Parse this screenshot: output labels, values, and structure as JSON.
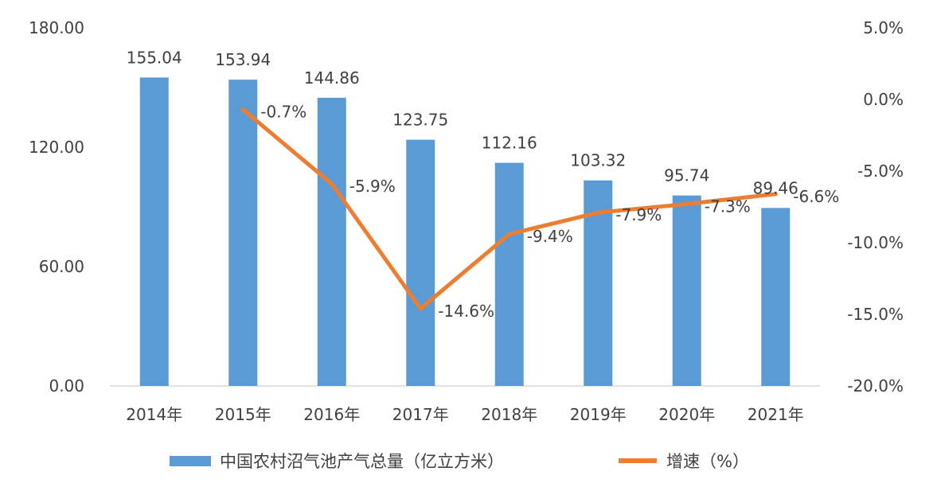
{
  "chart_data": {
    "type": "bar",
    "categories": [
      "2014年",
      "2015年",
      "2016年",
      "2017年",
      "2018年",
      "2019年",
      "2020年",
      "2021年"
    ],
    "series": [
      {
        "name": "中国农村沼气池产气总量（亿立方米）",
        "type": "bar",
        "axis": "left",
        "color": "#5B9BD5",
        "values": [
          155.04,
          153.94,
          144.86,
          123.75,
          112.16,
          103.32,
          95.74,
          89.46
        ],
        "labels": [
          "155.04",
          "153.94",
          "144.86",
          "123.75",
          "112.16",
          "103.32",
          "95.74",
          "89.46"
        ]
      },
      {
        "name": "增速（%）",
        "type": "line",
        "axis": "right",
        "color": "#ED7D31",
        "values": [
          null,
          -0.7,
          -5.9,
          -14.6,
          -9.4,
          -7.9,
          -7.3,
          -6.6
        ],
        "labels": [
          null,
          "-0.7%",
          "-5.9%",
          "-14.6%",
          "-9.4%",
          "-7.9%",
          "-7.3%",
          "-6.6%"
        ]
      }
    ],
    "y_left": {
      "ylim": [
        0,
        180
      ],
      "ticks": [
        0,
        60,
        120,
        180
      ],
      "tick_labels": [
        "0.00",
        "60.00",
        "120.00",
        "180.00"
      ]
    },
    "y_right": {
      "ylim": [
        -20,
        5
      ],
      "ticks": [
        -20,
        -15,
        -10,
        -5,
        0,
        5
      ],
      "tick_labels": [
        "-20.0%",
        "-15.0%",
        "-10.0%",
        "-5.0%",
        "0.0%",
        "5.0%"
      ]
    },
    "grid": false,
    "legend_position": "bottom"
  }
}
